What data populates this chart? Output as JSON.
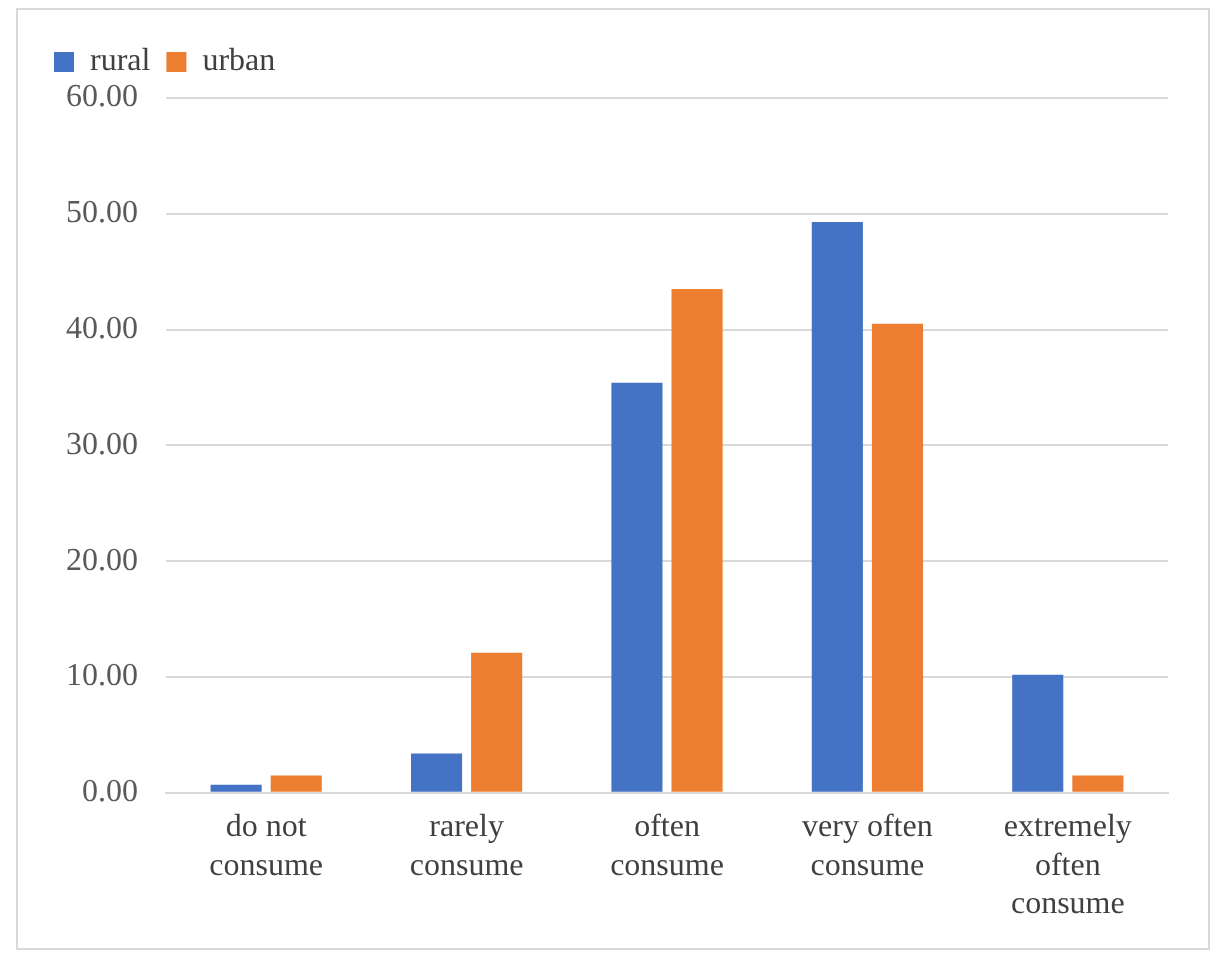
{
  "chart_data": {
    "type": "bar",
    "categories": [
      "do not consume",
      "rarely consume",
      "often consume",
      "very often consume",
      "extremely often consume"
    ],
    "series": [
      {
        "name": "rural",
        "color": "#4472c4",
        "values": [
          0.7,
          3.4,
          35.4,
          49.3,
          10.2
        ]
      },
      {
        "name": "urban",
        "color": "#ed7d31",
        "values": [
          1.5,
          12.1,
          43.5,
          40.5,
          1.5
        ]
      }
    ],
    "ylim": [
      0,
      60
    ],
    "yticks": [
      {
        "value": 0,
        "label": "0.00"
      },
      {
        "value": 10,
        "label": "10.00"
      },
      {
        "value": 20,
        "label": "20.00"
      },
      {
        "value": 30,
        "label": "30.00"
      },
      {
        "value": 40,
        "label": "40.00"
      },
      {
        "value": 50,
        "label": "50.00"
      },
      {
        "value": 60,
        "label": "60.00"
      }
    ],
    "grid": "y",
    "legend": "top left"
  }
}
